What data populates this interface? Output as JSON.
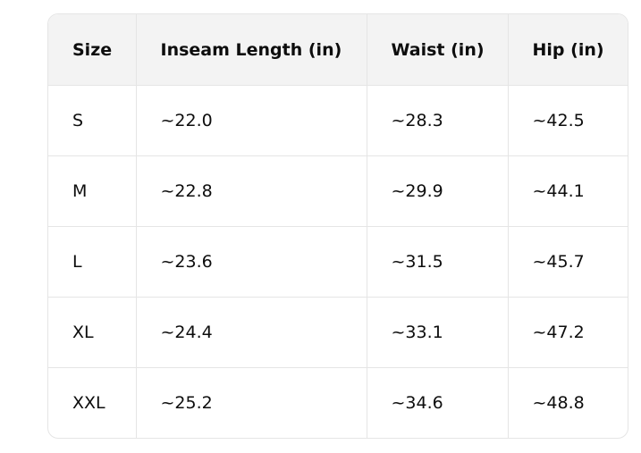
{
  "table": {
    "header": [
      "Size",
      "Inseam Length (in)",
      "Waist (in)",
      "Hip (in)"
    ],
    "rows": [
      [
        "S",
        "~22.0",
        "~28.3",
        "~42.5"
      ],
      [
        "M",
        "~22.8",
        "~29.9",
        "~44.1"
      ],
      [
        "L",
        "~23.6",
        "~31.5",
        "~45.7"
      ],
      [
        "XL",
        "~24.4",
        "~33.1",
        "~47.2"
      ],
      [
        "XXL",
        "~25.2",
        "~34.6",
        "~48.8"
      ]
    ]
  }
}
